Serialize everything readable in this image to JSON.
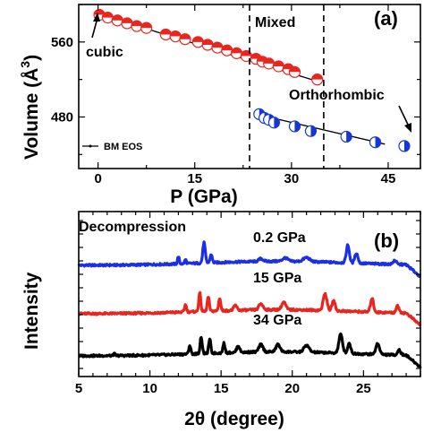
{
  "chart_data": [
    {
      "type": "scatter",
      "panel_label": "(a)",
      "xlabel": "P (GPa)",
      "ylabel": "Volume (Å3)",
      "ylabel_text": "Volume (",
      "ylabel_unit": "Å",
      "ylabel_exp": "3",
      "ylabel_close": ")",
      "xlim": [
        -3,
        50
      ],
      "ylim": [
        425,
        600
      ],
      "xticks": [
        0,
        15,
        30,
        45
      ],
      "yticks": [
        480,
        560
      ],
      "regions": {
        "mixed_bounds": [
          23.5,
          35
        ],
        "mixed_label": "Mixed"
      },
      "annotations": {
        "cubic": "cubic",
        "orthorhombic": "Orthorhombic"
      },
      "legend": {
        "label": "BM EOS"
      },
      "series": [
        {
          "name": "cubic",
          "color": "#e8251f",
          "x": [
            0.2,
            1.5,
            3,
            4.5,
            6,
            7.5,
            10.5,
            12,
            13.5,
            15.5,
            17,
            18.5,
            20,
            21.5,
            23,
            24.5,
            25.5,
            26.5,
            28,
            29.5,
            30.5,
            34
          ],
          "y": [
            589,
            586,
            583,
            580,
            577,
            575,
            568,
            566,
            563,
            560,
            557,
            554,
            551,
            548,
            545,
            542,
            539,
            537,
            534,
            531,
            528,
            520
          ]
        },
        {
          "name": "orthorhombic",
          "color": "#1537d6",
          "x": [
            25,
            25.8,
            26.5,
            27.3,
            30.5,
            33,
            38.5,
            43,
            47.5
          ],
          "y": [
            483,
            479,
            477,
            474,
            470,
            465,
            459,
            453,
            449
          ]
        }
      ],
      "fits": [
        {
          "name": "BM EOS cubic",
          "x": [
            0,
            34.5
          ],
          "y": [
            590,
            517
          ]
        },
        {
          "name": "BM EOS orthorhombic",
          "x": [
            24.5,
            44.5
          ],
          "y": [
            483,
            451
          ]
        }
      ]
    },
    {
      "type": "line",
      "panel_label": "(b)",
      "xlabel": "2θ (degree)",
      "ylabel": "Intensity",
      "title": "Decompression",
      "xlim": [
        5,
        29
      ],
      "xticks": [
        5,
        10,
        15,
        20,
        25
      ],
      "series": [
        {
          "name": "0.2 GPa",
          "color": "#1a2fe6",
          "offset": 2.0,
          "peaks": [
            [
              12.0,
              0.22,
              0.08
            ],
            [
              12.5,
              0.12,
              0.08
            ],
            [
              13.8,
              0.6,
              0.12
            ],
            [
              14.3,
              0.25,
              0.1
            ],
            [
              17.8,
              0.08,
              0.2
            ],
            [
              19.5,
              0.1,
              0.25
            ],
            [
              21.0,
              0.12,
              0.3
            ],
            [
              23.9,
              0.52,
              0.15
            ],
            [
              24.5,
              0.3,
              0.15
            ],
            [
              27.2,
              0.12,
              0.15
            ]
          ]
        },
        {
          "name": "15 GPa",
          "color": "#e8251f",
          "offset": 1.0,
          "peaks": [
            [
              12.5,
              0.22,
              0.1
            ],
            [
              13.5,
              0.55,
              0.1
            ],
            [
              14.1,
              0.42,
              0.1
            ],
            [
              14.9,
              0.38,
              0.1
            ],
            [
              16.0,
              0.15,
              0.15
            ],
            [
              17.8,
              0.18,
              0.2
            ],
            [
              19.4,
              0.22,
              0.2
            ],
            [
              22.3,
              0.5,
              0.18
            ],
            [
              22.9,
              0.3,
              0.15
            ],
            [
              25.6,
              0.4,
              0.15
            ],
            [
              27.4,
              0.2,
              0.15
            ]
          ]
        },
        {
          "name": "34 GPa",
          "color": "#000000",
          "offset": 0.0,
          "peaks": [
            [
              7.5,
              0.05,
              0.08
            ],
            [
              12.8,
              0.25,
              0.1
            ],
            [
              13.6,
              0.5,
              0.1
            ],
            [
              14.2,
              0.42,
              0.1
            ],
            [
              15.2,
              0.28,
              0.1
            ],
            [
              16.2,
              0.2,
              0.15
            ],
            [
              17.8,
              0.22,
              0.2
            ],
            [
              19.0,
              0.22,
              0.2
            ],
            [
              21.0,
              0.2,
              0.25
            ],
            [
              23.4,
              0.55,
              0.18
            ],
            [
              24.0,
              0.3,
              0.15
            ],
            [
              26.0,
              0.32,
              0.18
            ],
            [
              27.5,
              0.15,
              0.15
            ]
          ]
        }
      ]
    }
  ]
}
